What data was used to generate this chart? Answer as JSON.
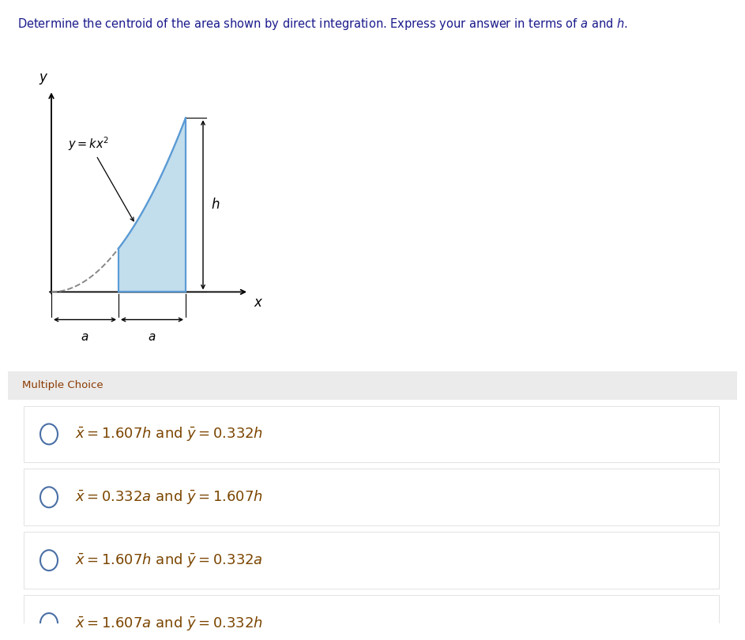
{
  "title": "Determine the centroid of the area shown by direct integration. Express your answer in terms of $a$ and $h$.",
  "title_color": "#1a1a8c",
  "background_color": "#ffffff",
  "panel_color": "#ebebeb",
  "option_bg_color": "#ffffff",
  "option_border_color": "#d8d8d8",
  "curve_label": "$y = kx^2$",
  "choices": [
    "$\\bar{x} = 1.607h\\ \\mathrm{and}\\ \\bar{y} = 0.332h$",
    "$\\bar{x} = 0.332a\\ \\mathrm{and}\\ \\bar{y} = 1.607h$",
    "$\\bar{x} = 1.607h\\ \\mathrm{and}\\ \\bar{y} = 0.332a$",
    "$\\bar{x} = 1.607a\\ \\mathrm{and}\\ \\bar{y} = 0.332h$"
  ],
  "multiple_choice_label": "Multiple Choice",
  "multiple_choice_color": "#8b3a00",
  "shade_color": "#b8d8e8",
  "shade_edge_color": "#5b9bd5",
  "axis_color": "#000000",
  "text_color": "#000000",
  "choice_text_color": "#7b4500",
  "circle_color": "#4a6fa5",
  "dim_arrow_color": "#333333",
  "dashed_color": "#888888"
}
